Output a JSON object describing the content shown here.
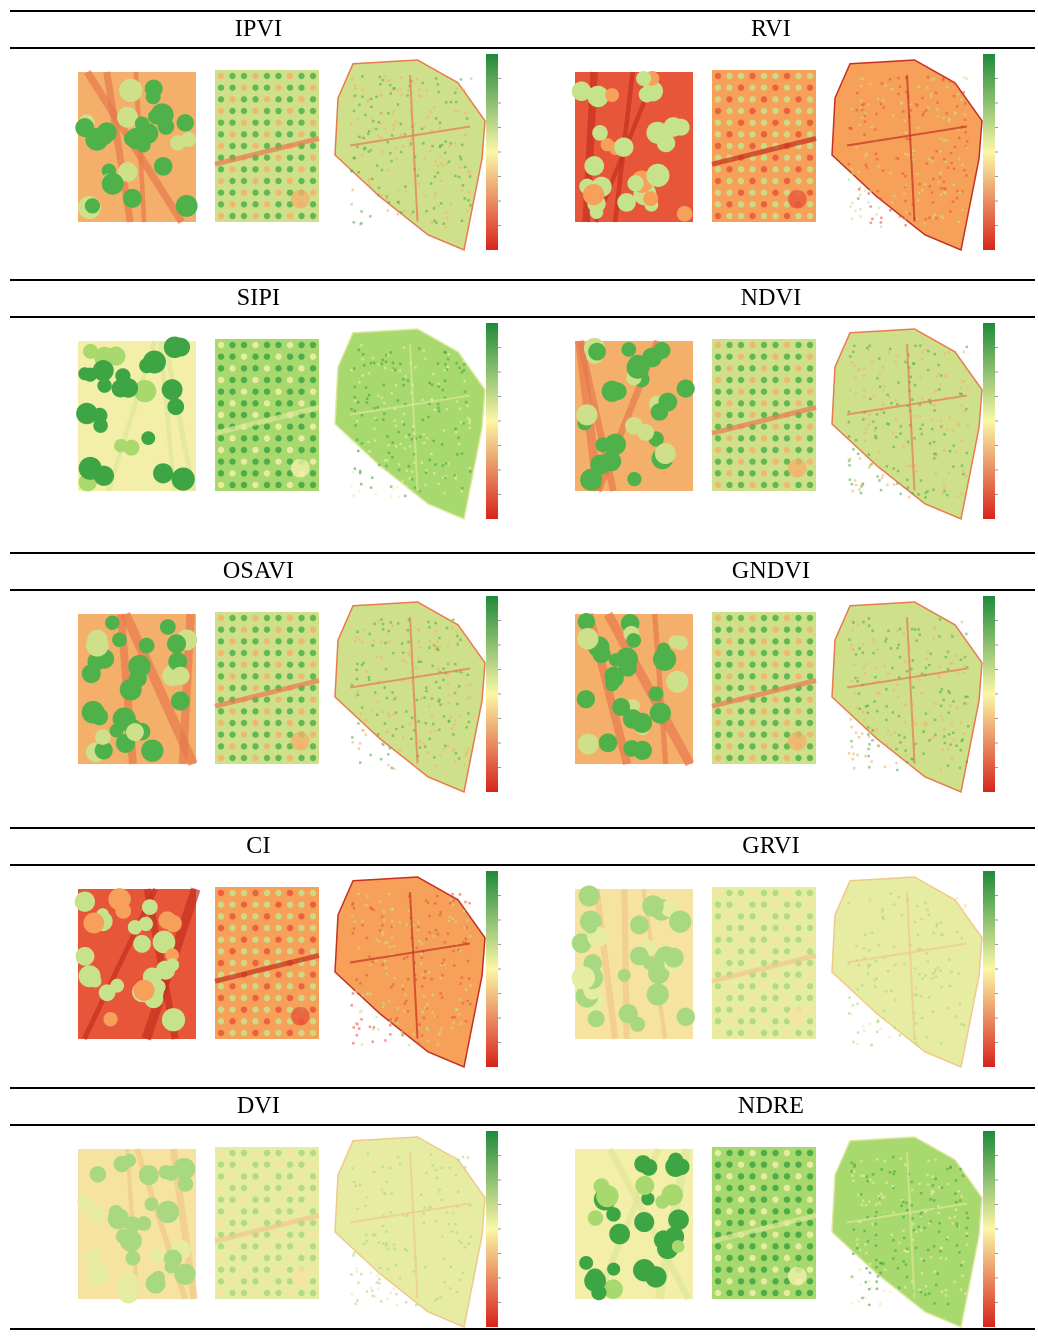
{
  "figure": {
    "rows": [
      {
        "indices": [
          {
            "label": "IPVI",
            "palette": "green-balanced"
          },
          {
            "label": "RVI",
            "palette": "red-dominant"
          }
        ]
      },
      {
        "indices": [
          {
            "label": "SIPI",
            "palette": "green-dominant"
          },
          {
            "label": "NDVI",
            "palette": "green-balanced"
          }
        ]
      },
      {
        "indices": [
          {
            "label": "OSAVI",
            "palette": "green-balanced"
          },
          {
            "label": "GNDVI",
            "palette": "green-balanced"
          }
        ]
      },
      {
        "indices": [
          {
            "label": "CI",
            "palette": "red-dominant"
          },
          {
            "label": "GRVI",
            "palette": "pale-yellow"
          }
        ]
      },
      {
        "indices": [
          {
            "label": "DVI",
            "palette": "pale-yellow"
          },
          {
            "label": "NDRE",
            "palette": "green-dominant"
          }
        ]
      }
    ],
    "colorbar": {
      "high": "#1f8a3b",
      "mid": "#fbf7a6",
      "low": "#d7241c"
    }
  }
}
